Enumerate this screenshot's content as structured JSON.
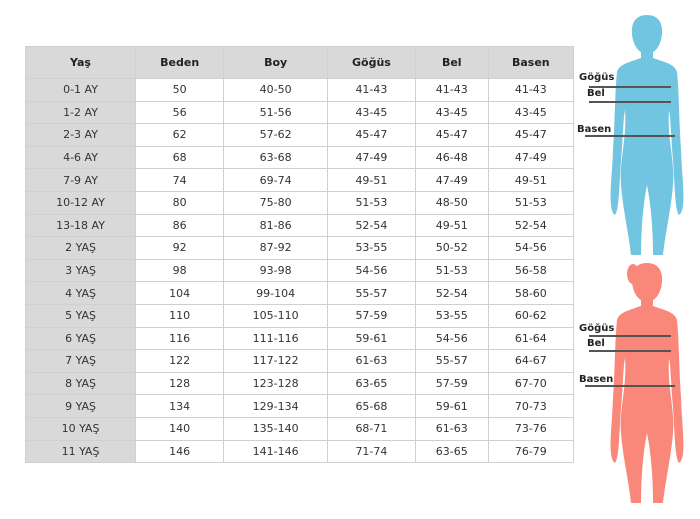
{
  "table": {
    "headers": [
      "Yaş",
      "Beden",
      "Boy",
      "Göğüs",
      "Bel",
      "Basen"
    ],
    "rows": [
      [
        "0-1 AY",
        "50",
        "40-50",
        "41-43",
        "41-43",
        "41-43"
      ],
      [
        "1-2 AY",
        "56",
        "51-56",
        "43-45",
        "43-45",
        "43-45"
      ],
      [
        "2-3 AY",
        "62",
        "57-62",
        "45-47",
        "45-47",
        "45-47"
      ],
      [
        "4-6 AY",
        "68",
        "63-68",
        "47-49",
        "46-48",
        "47-49"
      ],
      [
        "7-9 AY",
        "74",
        "69-74",
        "49-51",
        "47-49",
        "49-51"
      ],
      [
        "10-12 AY",
        "80",
        "75-80",
        "51-53",
        "48-50",
        "51-53"
      ],
      [
        "13-18 AY",
        "86",
        "81-86",
        "52-54",
        "49-51",
        "52-54"
      ],
      [
        "2 YAŞ",
        "92",
        "87-92",
        "53-55",
        "50-52",
        "54-56"
      ],
      [
        "3 YAŞ",
        "98",
        "93-98",
        "54-56",
        "51-53",
        "56-58"
      ],
      [
        "4 YAŞ",
        "104",
        "99-104",
        "55-57",
        "52-54",
        "58-60"
      ],
      [
        "5 YAŞ",
        "110",
        "105-110",
        "57-59",
        "53-55",
        "60-62"
      ],
      [
        "6 YAŞ",
        "116",
        "111-116",
        "59-61",
        "54-56",
        "61-64"
      ],
      [
        "7 YAŞ",
        "122",
        "117-122",
        "61-63",
        "55-57",
        "64-67"
      ],
      [
        "8 YAŞ",
        "128",
        "123-128",
        "63-65",
        "57-59",
        "67-70"
      ],
      [
        "9 YAŞ",
        "134",
        "129-134",
        "65-68",
        "59-61",
        "70-73"
      ],
      [
        "10 YAŞ",
        "140",
        "135-140",
        "68-71",
        "61-63",
        "73-76"
      ],
      [
        "11 YAŞ",
        "146",
        "141-146",
        "71-74",
        "63-65",
        "76-79"
      ]
    ]
  },
  "figures": {
    "boy": {
      "color": "#72c5e0",
      "labels": {
        "chest": "Göğüs",
        "waist": "Bel",
        "hip": "Basen"
      }
    },
    "girl": {
      "color": "#f9887a",
      "labels": {
        "chest": "Göğüs",
        "waist": "Bel",
        "hip": "Basen"
      }
    }
  }
}
